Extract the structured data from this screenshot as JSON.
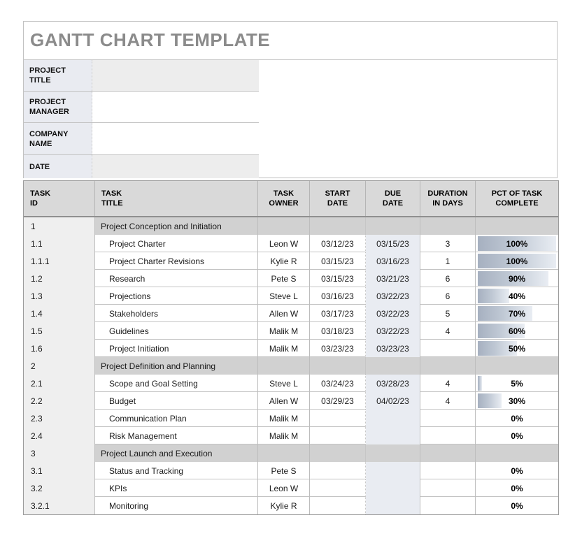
{
  "app": {
    "title": "GANTT CHART TEMPLATE"
  },
  "colors": {
    "title_text": "#8b8b8b",
    "table_header_bg": "#d9d9d9",
    "section_row_bg": "#d1d1d1",
    "id_column_bg": "#efefef",
    "due_column_bg": "#e9ecf2",
    "info_label_bg": "#e9ebf1",
    "info_value_shaded_bg": "#ededed",
    "progress_bar_start": "#a6b0c0",
    "progress_bar_end": "#e9edf3"
  },
  "info_panel": {
    "fields": [
      {
        "label": "PROJECT TITLE",
        "value": "",
        "shaded": true
      },
      {
        "label": "PROJECT MANAGER",
        "value": "",
        "shaded": false
      },
      {
        "label": "COMPANY NAME",
        "value": "",
        "shaded": false
      },
      {
        "label": "DATE",
        "value": "",
        "shaded": true
      }
    ]
  },
  "task_table": {
    "columns": [
      {
        "key": "id",
        "label": "TASK\nID",
        "align": "left"
      },
      {
        "key": "title",
        "label": "TASK\nTITLE",
        "align": "left"
      },
      {
        "key": "owner",
        "label": "TASK\nOWNER",
        "align": "center"
      },
      {
        "key": "start",
        "label": "START\nDATE",
        "align": "center"
      },
      {
        "key": "due",
        "label": "DUE\nDATE",
        "align": "center"
      },
      {
        "key": "duration",
        "label": "DURATION\nIN DAYS",
        "align": "center"
      },
      {
        "key": "pct",
        "label": "PCT OF TASK\nCOMPLETE",
        "align": "center"
      }
    ],
    "rows": [
      {
        "type": "section",
        "id": "1",
        "title": "Project Conception and Initiation",
        "owner": "",
        "start": "",
        "due": "",
        "duration": "",
        "pct": null,
        "pct_label": ""
      },
      {
        "type": "task",
        "id": "1.1",
        "title": "Project Charter",
        "owner": "Leon W",
        "start": "03/12/23",
        "due": "03/15/23",
        "duration": "3",
        "pct": 100,
        "pct_label": "100%"
      },
      {
        "type": "task",
        "id": "1.1.1",
        "title": "Project Charter Revisions",
        "owner": "Kylie R",
        "start": "03/15/23",
        "due": "03/16/23",
        "duration": "1",
        "pct": 100,
        "pct_label": "100%"
      },
      {
        "type": "task",
        "id": "1.2",
        "title": "Research",
        "owner": "Pete S",
        "start": "03/15/23",
        "due": "03/21/23",
        "duration": "6",
        "pct": 90,
        "pct_label": "90%"
      },
      {
        "type": "task",
        "id": "1.3",
        "title": "Projections",
        "owner": "Steve L",
        "start": "03/16/23",
        "due": "03/22/23",
        "duration": "6",
        "pct": 40,
        "pct_label": "40%"
      },
      {
        "type": "task",
        "id": "1.4",
        "title": "Stakeholders",
        "owner": "Allen W",
        "start": "03/17/23",
        "due": "03/22/23",
        "duration": "5",
        "pct": 70,
        "pct_label": "70%"
      },
      {
        "type": "task",
        "id": "1.5",
        "title": "Guidelines",
        "owner": "Malik M",
        "start": "03/18/23",
        "due": "03/22/23",
        "duration": "4",
        "pct": 60,
        "pct_label": "60%"
      },
      {
        "type": "task",
        "id": "1.6",
        "title": "Project Initiation",
        "owner": "Malik M",
        "start": "03/23/23",
        "due": "03/23/23",
        "duration": "",
        "pct": 50,
        "pct_label": "50%"
      },
      {
        "type": "section",
        "id": "2",
        "title": "Project Definition and Planning",
        "owner": "",
        "start": "",
        "due": "",
        "duration": "",
        "pct": null,
        "pct_label": ""
      },
      {
        "type": "task",
        "id": "2.1",
        "title": "Scope and Goal Setting",
        "owner": "Steve L",
        "start": "03/24/23",
        "due": "03/28/23",
        "duration": "4",
        "pct": 5,
        "pct_label": "5%"
      },
      {
        "type": "task",
        "id": "2.2",
        "title": "Budget",
        "owner": "Allen W",
        "start": "03/29/23",
        "due": "04/02/23",
        "duration": "4",
        "pct": 30,
        "pct_label": "30%"
      },
      {
        "type": "task",
        "id": "2.3",
        "title": "Communication Plan",
        "owner": "Malik M",
        "start": "",
        "due": "",
        "duration": "",
        "pct": 0,
        "pct_label": "0%"
      },
      {
        "type": "task",
        "id": "2.4",
        "title": "Risk Management",
        "owner": "Malik M",
        "start": "",
        "due": "",
        "duration": "",
        "pct": 0,
        "pct_label": "0%"
      },
      {
        "type": "section",
        "id": "3",
        "title": "Project Launch and Execution",
        "owner": "",
        "start": "",
        "due": "",
        "duration": "",
        "pct": null,
        "pct_label": ""
      },
      {
        "type": "task",
        "id": "3.1",
        "title": "Status and Tracking",
        "owner": "Pete S",
        "start": "",
        "due": "",
        "duration": "",
        "pct": 0,
        "pct_label": "0%"
      },
      {
        "type": "task",
        "id": "3.2",
        "title": "KPIs",
        "owner": "Leon W",
        "start": "",
        "due": "",
        "duration": "",
        "pct": 0,
        "pct_label": "0%"
      },
      {
        "type": "task",
        "id": "3.2.1",
        "title": "Monitoring",
        "owner": "Kylie R",
        "start": "",
        "due": "",
        "duration": "",
        "pct": 0,
        "pct_label": "0%"
      }
    ]
  }
}
